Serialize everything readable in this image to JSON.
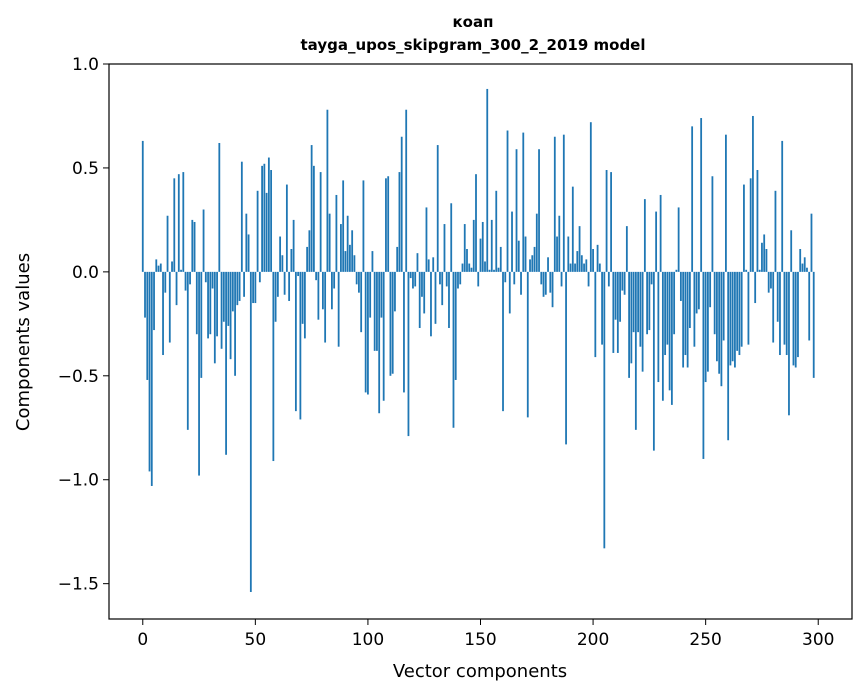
{
  "chart_data": {
    "type": "bar",
    "title_line1": "коап",
    "title_line2": "tayga_upos_skipgram_300_2_2019 model",
    "xlabel": "Vector components",
    "ylabel": "Components values",
    "xlim": [
      -15,
      315
    ],
    "ylim": [
      -1.67,
      1.0
    ],
    "xticks": [
      0,
      50,
      100,
      150,
      200,
      250,
      300
    ],
    "xtick_labels": [
      "0",
      "50",
      "100",
      "150",
      "200",
      "250",
      "300"
    ],
    "yticks": [
      -1.5,
      -1.0,
      -0.5,
      0.0,
      0.5,
      1.0
    ],
    "ytick_labels": [
      "−1.5",
      "−1.0",
      "−0.5",
      "0.0",
      "0.5",
      "1.0"
    ],
    "bar_color": "#1f77b4",
    "values": [
      0.63,
      -0.22,
      -0.52,
      -0.96,
      -1.03,
      -0.28,
      0.06,
      0.03,
      0.04,
      -0.4,
      -0.1,
      0.27,
      -0.34,
      0.05,
      0.45,
      -0.16,
      0.47,
      0.01,
      0.48,
      -0.09,
      -0.76,
      -0.06,
      0.25,
      0.24,
      -0.3,
      -0.98,
      -0.51,
      0.3,
      -0.05,
      -0.32,
      -0.3,
      -0.08,
      -0.44,
      -0.31,
      0.62,
      -0.37,
      -0.24,
      -0.88,
      -0.26,
      -0.42,
      -0.19,
      -0.5,
      -0.16,
      -0.14,
      0.53,
      -0.12,
      0.28,
      0.18,
      -1.54,
      -0.15,
      -0.15,
      0.39,
      -0.05,
      0.51,
      0.52,
      0.38,
      0.55,
      0.49,
      -0.91,
      -0.24,
      -0.12,
      0.17,
      0.08,
      -0.11,
      0.42,
      -0.14,
      0.11,
      0.25,
      -0.67,
      -0.02,
      -0.71,
      -0.25,
      -0.32,
      0.12,
      0.2,
      0.61,
      0.51,
      -0.04,
      -0.23,
      0.48,
      -0.18,
      -0.34,
      0.78,
      0.28,
      -0.18,
      -0.08,
      0.37,
      -0.36,
      0.23,
      0.44,
      0.1,
      0.27,
      0.13,
      0.2,
      0.08,
      -0.06,
      -0.1,
      -0.29,
      0.44,
      -0.58,
      -0.59,
      -0.22,
      0.1,
      -0.38,
      -0.38,
      -0.68,
      -0.22,
      -0.62,
      0.45,
      0.46,
      -0.5,
      -0.49,
      -0.19,
      0.12,
      0.48,
      0.65,
      -0.58,
      0.78,
      -0.79,
      -0.03,
      -0.08,
      -0.07,
      0.09,
      -0.27,
      -0.12,
      -0.2,
      0.31,
      0.06,
      -0.31,
      0.07,
      -0.25,
      0.61,
      -0.06,
      -0.16,
      0.23,
      -0.07,
      -0.27,
      0.33,
      -0.75,
      -0.52,
      -0.08,
      -0.06,
      0.04,
      0.23,
      0.11,
      0.04,
      0.02,
      0.25,
      0.47,
      -0.07,
      0.16,
      0.24,
      0.05,
      0.88,
      0.01,
      0.25,
      0.01,
      0.39,
      0.02,
      0.12,
      -0.67,
      -0.05,
      0.68,
      -0.2,
      0.29,
      -0.06,
      0.59,
      0.15,
      -0.11,
      0.67,
      0.17,
      -0.7,
      0.06,
      0.08,
      0.12,
      0.28,
      0.59,
      -0.06,
      -0.12,
      -0.11,
      0.07,
      -0.1,
      -0.17,
      0.65,
      0.17,
      0.27,
      -0.07,
      0.66,
      -0.83,
      0.17,
      0.04,
      0.41,
      0.04,
      0.1,
      0.22,
      0.08,
      0.04,
      0.06,
      -0.07,
      0.72,
      0.11,
      -0.41,
      0.13,
      0.04,
      -0.35,
      -1.33,
      0.49,
      -0.07,
      0.48,
      -0.39,
      -0.23,
      -0.39,
      -0.24,
      -0.09,
      -0.11,
      0.22,
      -0.51,
      -0.44,
      -0.29,
      -0.76,
      -0.29,
      -0.36,
      -0.48,
      0.35,
      -0.3,
      -0.28,
      -0.06,
      -0.86,
      0.29,
      -0.53,
      0.37,
      -0.62,
      -0.4,
      -0.35,
      -0.57,
      -0.64,
      -0.3,
      0.01,
      0.31,
      -0.14,
      -0.46,
      -0.4,
      -0.46,
      -0.27,
      0.7,
      -0.36,
      -0.2,
      -0.18,
      0.74,
      -0.9,
      -0.53,
      -0.48,
      -0.17,
      0.46,
      -0.3,
      -0.43,
      -0.49,
      -0.55,
      -0.33,
      0.66,
      -0.81,
      -0.45,
      -0.43,
      -0.46,
      -0.38,
      -0.4,
      -0.36,
      0.42,
      0.01,
      -0.35,
      0.45,
      0.75,
      -0.15,
      0.49,
      0.01,
      0.14,
      0.18,
      0.11,
      -0.1,
      -0.08,
      -0.34,
      0.39,
      -0.24,
      -0.4,
      0.63,
      -0.35,
      -0.4,
      -0.69,
      0.2,
      -0.45,
      -0.46,
      -0.41,
      0.11,
      0.04,
      0.07,
      0.02,
      -0.33,
      0.28,
      -0.51
    ]
  }
}
